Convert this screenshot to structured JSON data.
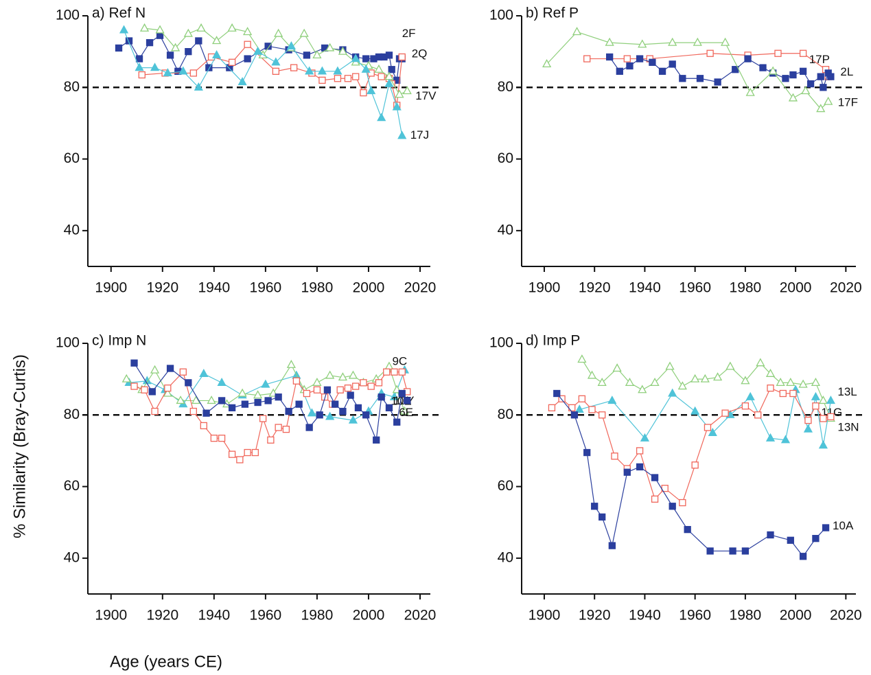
{
  "y_label": "% Similarity (Bray-Curtis)",
  "x_label": "Age (years CE)",
  "chart_data": [
    {
      "type": "line",
      "title": "a) Ref N",
      "xlim": [
        1891,
        2024
      ],
      "ylim": [
        30,
        100
      ],
      "xticks": [
        1900,
        1920,
        1940,
        1960,
        1980,
        2000,
        2020
      ],
      "yticks": [
        40,
        60,
        80,
        100
      ],
      "ref_line": 80,
      "series": [
        {
          "name": "2F",
          "color": "#2b3f9e",
          "marker": "square-filled",
          "x": [
            1903,
            1907,
            1911,
            1915,
            1919,
            1923,
            1926,
            1930,
            1934,
            1938,
            1946,
            1953,
            1961,
            1969,
            1976,
            1983,
            1990,
            1995,
            1999,
            2002,
            2004,
            2006,
            2008,
            2009,
            2011,
            2012,
            2013
          ],
          "values": [
            91,
            93,
            88,
            92.5,
            94.5,
            89,
            84.5,
            90,
            93,
            85.5,
            85.5,
            88,
            91.5,
            90.5,
            89,
            91,
            90.5,
            88.5,
            88,
            88,
            88.5,
            88.5,
            89,
            85,
            82,
            88,
            88
          ]
        },
        {
          "name": "2Q",
          "color": "#f0665a",
          "marker": "square-open",
          "x": [
            1912,
            1921,
            1932,
            1939,
            1947,
            1953,
            1964,
            1971,
            1978,
            1982,
            1988,
            1992,
            1995,
            1998,
            2001,
            2005,
            2008,
            2009,
            2011,
            2013
          ],
          "values": [
            83.5,
            84,
            84,
            88.5,
            87,
            92,
            84.5,
            85.5,
            84,
            82,
            82.5,
            82.5,
            83,
            78.5,
            84,
            83,
            82.5,
            81,
            75,
            88.5
          ]
        },
        {
          "name": "17V",
          "color": "#8fcf7c",
          "marker": "triangle-open",
          "x": [
            1913,
            1919,
            1925,
            1930,
            1935,
            1941,
            1947,
            1953,
            1959,
            1965,
            1970,
            1975,
            1980,
            1985,
            1990,
            1995,
            2000,
            2004,
            2008,
            2012,
            2015
          ],
          "values": [
            96.5,
            96,
            91,
            95,
            96.5,
            93,
            96.5,
            95.5,
            89,
            95,
            91,
            95,
            89,
            91,
            90,
            87,
            86,
            85,
            83,
            78,
            79
          ]
        },
        {
          "name": "17J",
          "color": "#4fc3d8",
          "marker": "triangle-filled",
          "x": [
            1905,
            1911,
            1917,
            1922,
            1928,
            1934,
            1941,
            1951,
            1957,
            1964,
            1970,
            1977,
            1982,
            1988,
            1995,
            1999,
            2001,
            2005,
            2008,
            2011,
            2013
          ],
          "values": [
            96,
            85.5,
            85.5,
            84,
            84.5,
            80,
            89,
            81.5,
            90,
            87,
            91.5,
            84.5,
            84.5,
            84.5,
            88,
            85,
            79,
            71.5,
            81,
            74.5,
            66.5
          ]
        }
      ]
    },
    {
      "type": "line",
      "title": "b) Ref P",
      "xlim": [
        1891,
        2024
      ],
      "ylim": [
        30,
        100
      ],
      "xticks": [
        1900,
        1920,
        1940,
        1960,
        1980,
        2000,
        2020
      ],
      "yticks": [
        40,
        60,
        80,
        100
      ],
      "ref_line": 80,
      "series": [
        {
          "name": "17P",
          "color": "#f0665a",
          "marker": "square-open",
          "x": [
            1917,
            1933,
            1942,
            1966,
            1981,
            1993,
            2003,
            2012,
            2013
          ],
          "values": [
            88,
            88,
            88,
            89.5,
            89,
            89.5,
            89.5,
            85,
            83
          ]
        },
        {
          "name": "2L",
          "color": "#2b3f9e",
          "marker": "square-filled",
          "x": [
            1926,
            1930,
            1934,
            1938,
            1943,
            1947,
            1951,
            1955,
            1962,
            1969,
            1976,
            1981,
            1987,
            1991,
            1996,
            1999,
            2003,
            2006,
            2010,
            2011,
            2013,
            2014
          ],
          "values": [
            88.5,
            84.5,
            86,
            88,
            87,
            84.5,
            86.5,
            82.5,
            82.5,
            81.5,
            85,
            88,
            85.5,
            84,
            82.5,
            83.5,
            84.5,
            81,
            83,
            80,
            84,
            83
          ]
        },
        {
          "name": "17F",
          "color": "#8fcf7c",
          "marker": "triangle-open",
          "x": [
            1901,
            1913,
            1926,
            1939,
            1951,
            1961,
            1972,
            1982,
            1991,
            1999,
            2004,
            2010,
            2013
          ],
          "values": [
            86.5,
            95.5,
            92.5,
            92,
            92.5,
            92.5,
            92.5,
            78.5,
            84.5,
            77,
            79,
            74,
            76
          ]
        }
      ]
    },
    {
      "type": "line",
      "title": "c) Imp N",
      "xlim": [
        1891,
        2024
      ],
      "ylim": [
        30,
        100
      ],
      "xticks": [
        1900,
        1920,
        1940,
        1960,
        1980,
        2000,
        2020
      ],
      "yticks": [
        40,
        60,
        80,
        100
      ],
      "ref_line": 80,
      "series": [
        {
          "name": "9C",
          "color": "#4fc3d8",
          "marker": "triangle-filled",
          "x": [
            1907,
            1914,
            1921,
            1928,
            1936,
            1943,
            1951,
            1960,
            1972,
            1978,
            1985,
            1994,
            2000,
            2005,
            2010,
            2014
          ],
          "values": [
            89,
            89.5,
            87,
            83,
            91.5,
            89,
            85.5,
            88.5,
            91,
            80.5,
            79.5,
            78.5,
            81,
            86,
            85,
            92.5
          ]
        },
        {
          "name": "10E",
          "color": "#8fcf7c",
          "marker": "triangle-open",
          "x": [
            1906,
            1912,
            1917,
            1922,
            1927,
            1933,
            1939,
            1945,
            1951,
            1957,
            1963,
            1970,
            1975,
            1980,
            1985,
            1990,
            1994,
            1998,
            2003,
            2008,
            2011,
            2014
          ],
          "values": [
            90,
            87,
            92.5,
            86,
            84,
            84,
            84,
            83,
            86,
            85.5,
            86,
            94,
            87,
            89,
            91,
            90.5,
            91,
            89,
            90,
            93.5,
            87,
            81
          ]
        },
        {
          "name": "10Y",
          "color": "#f0665a",
          "marker": "square-open",
          "x": [
            1909,
            1913,
            1917,
            1922,
            1928,
            1932,
            1936,
            1940,
            1943,
            1947,
            1950,
            1953,
            1956,
            1959,
            1962,
            1965,
            1968,
            1972,
            1976,
            1980,
            1983,
            1986,
            1989,
            1992,
            1995,
            1998,
            2001,
            2004,
            2007,
            2010,
            2013,
            2015
          ],
          "values": [
            88,
            87,
            81,
            87.5,
            92,
            81,
            77,
            73.5,
            73.5,
            69,
            67.5,
            69.5,
            69.5,
            79,
            73,
            76.5,
            76,
            89.5,
            86,
            87,
            85,
            83,
            87,
            87.5,
            88,
            89,
            88,
            89,
            92,
            92,
            92,
            86.5
          ]
        },
        {
          "name": "6E",
          "color": "#2b3f9e",
          "marker": "square-filled",
          "x": [
            1909,
            1916,
            1923,
            1930,
            1937,
            1943,
            1947,
            1952,
            1957,
            1961,
            1965,
            1969,
            1973,
            1977,
            1981,
            1984,
            1987,
            1990,
            1993,
            1996,
            1999,
            2003,
            2005,
            2008,
            2011,
            2013,
            2015
          ],
          "values": [
            94.5,
            86.5,
            93,
            89,
            80.5,
            84,
            82,
            83,
            83.5,
            84,
            85,
            81,
            83,
            76.5,
            80,
            87,
            83,
            81,
            85.5,
            82,
            80,
            73,
            85,
            82,
            78,
            86,
            84
          ]
        }
      ]
    },
    {
      "type": "line",
      "title": "d) Imp P",
      "xlim": [
        1891,
        2024
      ],
      "ylim": [
        30,
        100
      ],
      "xticks": [
        1900,
        1920,
        1940,
        1960,
        1980,
        2000,
        2020
      ],
      "yticks": [
        40,
        60,
        80,
        100
      ],
      "ref_line": 80,
      "series": [
        {
          "name": "11G",
          "color": "#8fcf7c",
          "marker": "triangle-open",
          "x": [
            1915,
            1919,
            1923,
            1929,
            1934,
            1939,
            1944,
            1950,
            1955,
            1960,
            1964,
            1969,
            1974,
            1980,
            1986,
            1990,
            1994,
            1998,
            2003,
            2008,
            2011,
            2014
          ],
          "values": [
            95.5,
            91,
            89,
            93,
            89,
            87,
            89,
            93.5,
            88,
            90,
            90,
            90.5,
            93.5,
            89.5,
            94.5,
            91.5,
            89,
            89,
            88.5,
            89,
            84,
            79
          ]
        },
        {
          "name": "13L",
          "color": "#4fc3d8",
          "marker": "triangle-filled",
          "x": [
            1914,
            1927,
            1940,
            1951,
            1960,
            1967,
            1974,
            1982,
            1990,
            1996,
            2000,
            2005,
            2008,
            2011,
            2014
          ],
          "values": [
            81.5,
            84,
            73.5,
            86,
            81,
            75,
            80,
            85,
            73.5,
            73,
            87,
            76,
            85,
            71.5,
            84
          ]
        },
        {
          "name": "13N",
          "color": "#f0665a",
          "marker": "square-open",
          "x": [
            1903,
            1907,
            1911,
            1915,
            1919,
            1923,
            1928,
            1933,
            1938,
            1944,
            1948,
            1955,
            1960,
            1965,
            1972,
            1980,
            1985,
            1990,
            1995,
            1999,
            2005,
            2008,
            2011,
            2014
          ],
          "values": [
            82,
            84.5,
            82,
            84.5,
            81.5,
            80,
            68.5,
            65,
            70,
            56.5,
            59.5,
            55.5,
            66,
            76.5,
            80.5,
            82.5,
            80,
            87.5,
            86,
            86,
            78.5,
            82.5,
            79,
            79.5
          ]
        },
        {
          "name": "10A",
          "color": "#2b3f9e",
          "marker": "square-filled",
          "x": [
            1905,
            1912,
            1917,
            1920,
            1923,
            1927,
            1933,
            1938,
            1944,
            1951,
            1957,
            1966,
            1975,
            1980,
            1990,
            1998,
            2003,
            2008,
            2012
          ],
          "values": [
            86,
            80,
            69.5,
            54.5,
            51.5,
            43.5,
            64,
            65.5,
            62.5,
            54.5,
            48,
            42,
            42,
            42,
            46.5,
            45,
            40.5,
            45.5,
            48.5
          ]
        }
      ]
    }
  ]
}
